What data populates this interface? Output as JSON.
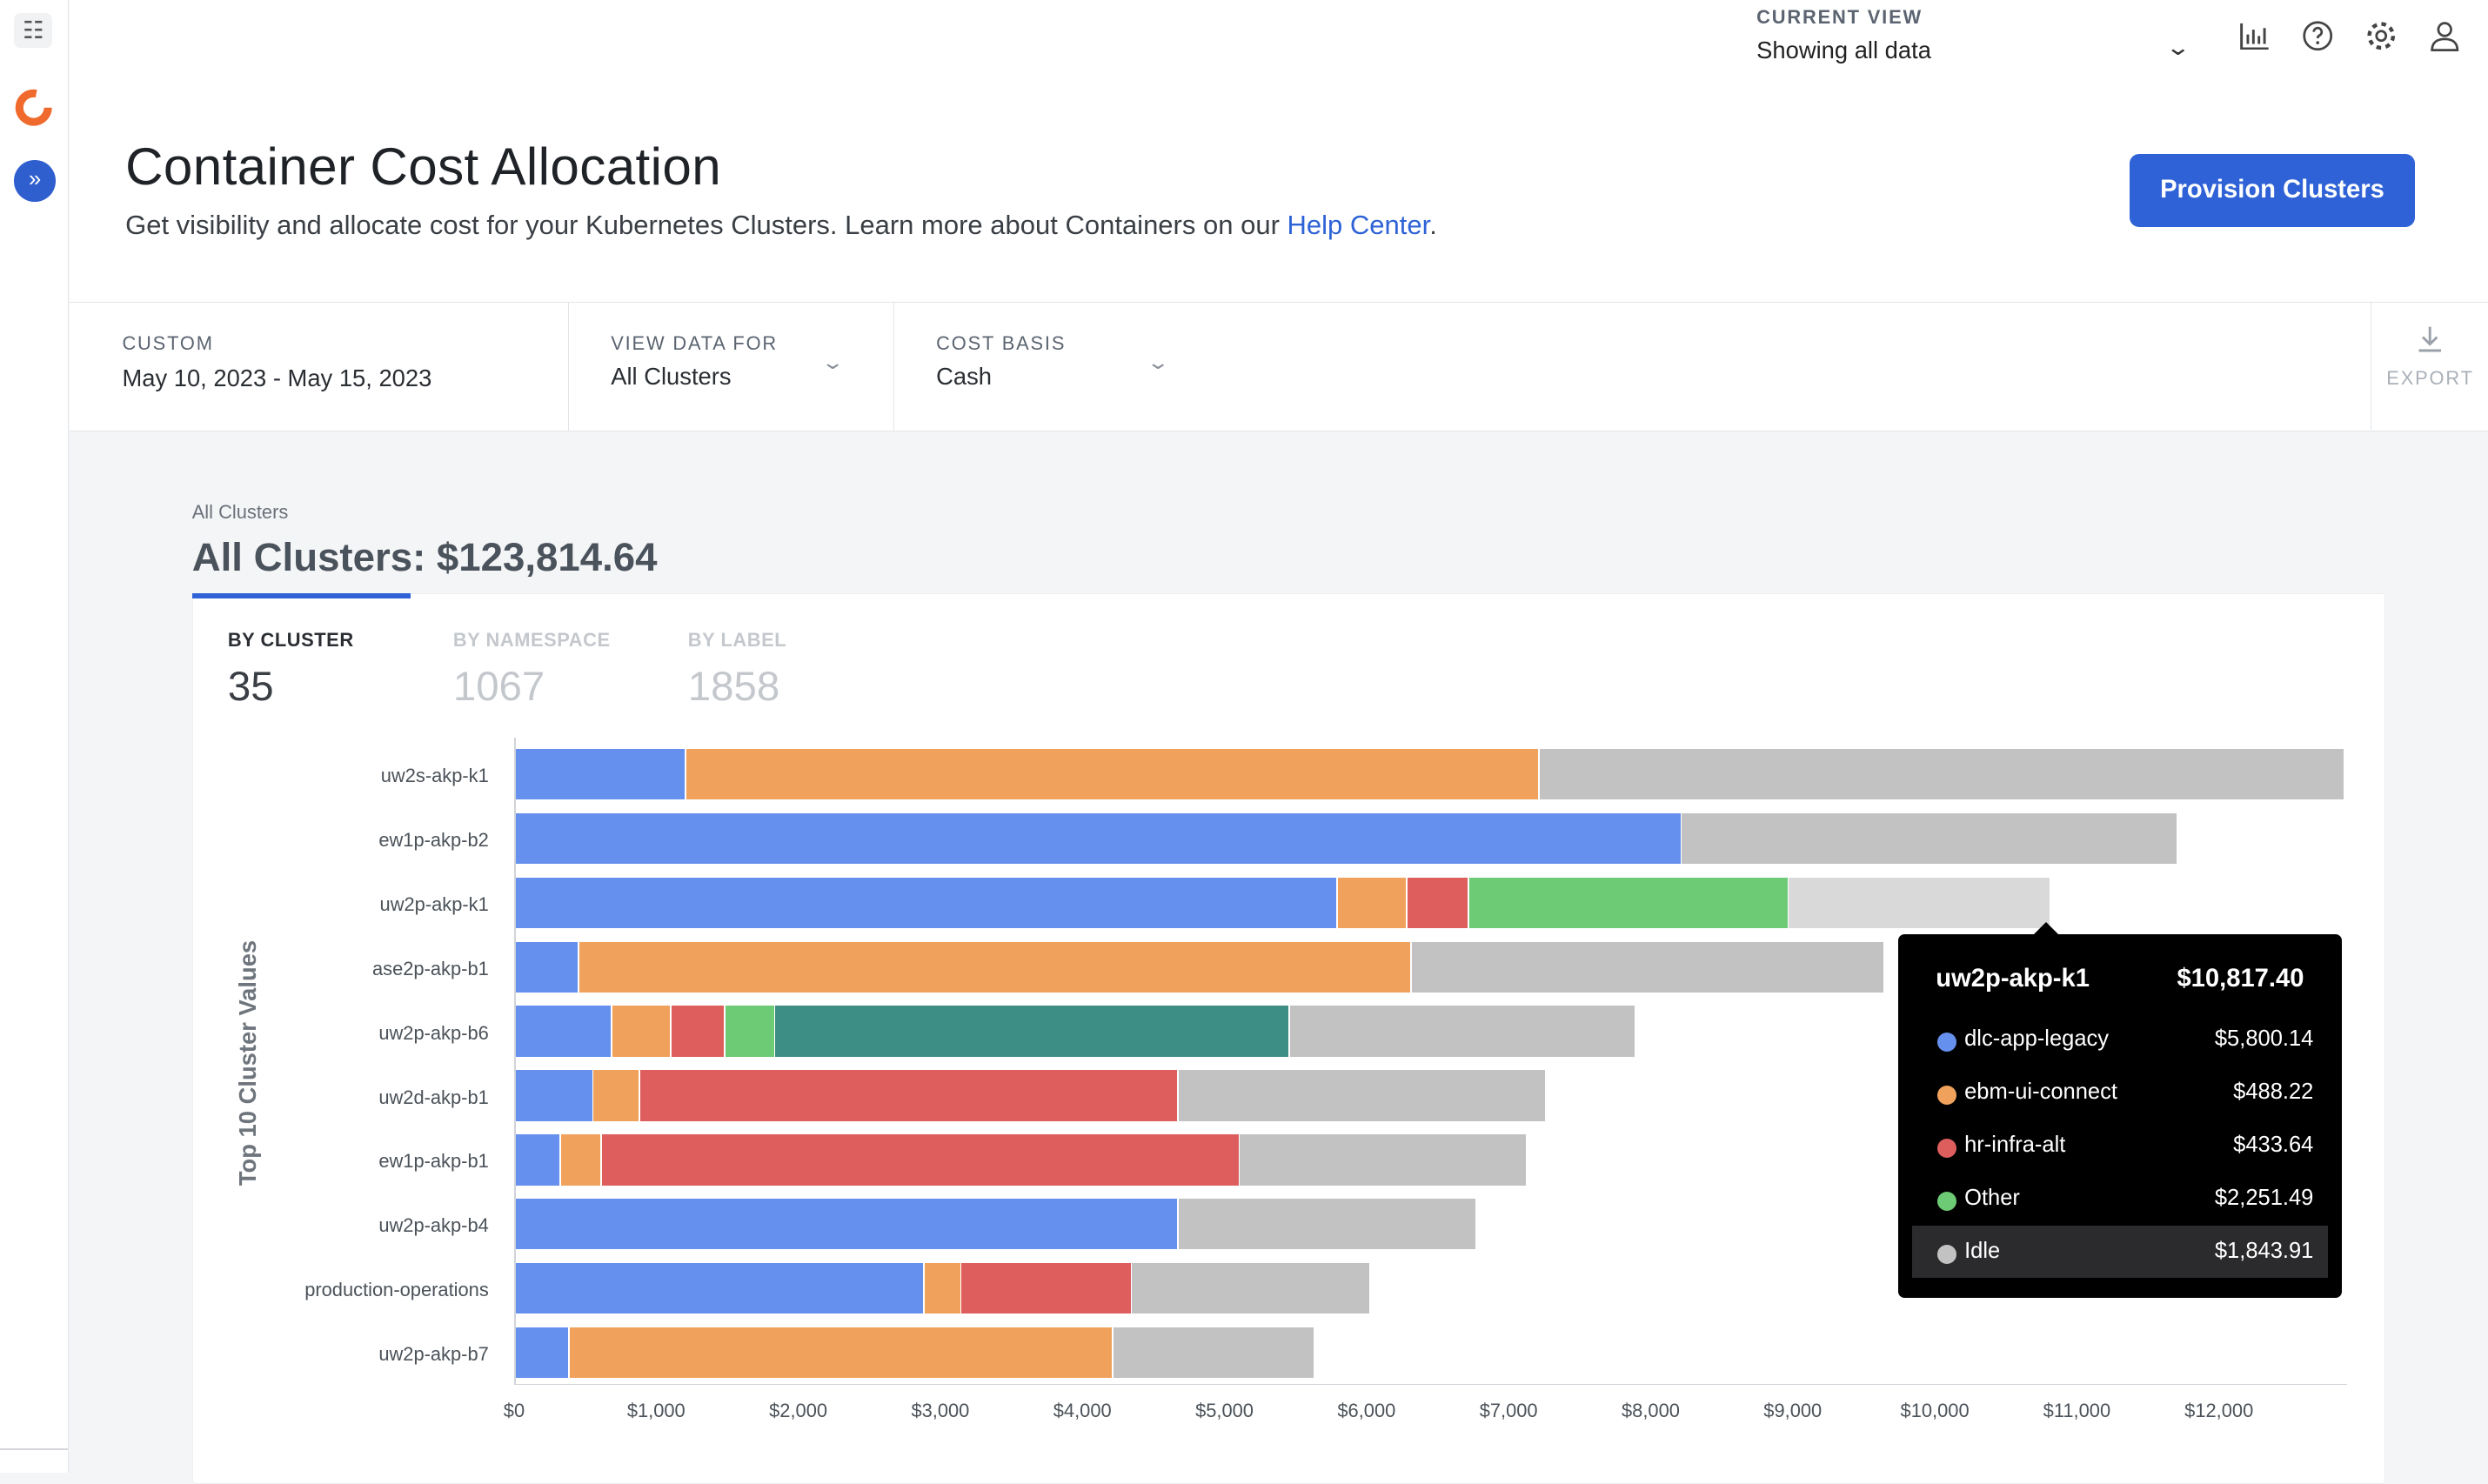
{
  "header": {
    "current_view_label": "CURRENT VIEW",
    "current_view_value": "Showing all data",
    "icons": [
      "bar-chart-icon",
      "help-icon",
      "settings-icon",
      "user-icon"
    ]
  },
  "page": {
    "title": "Container Cost Allocation",
    "subtitle": "Get visibility and allocate cost for your Kubernetes Clusters. Learn more about Containers on our ",
    "subtitle_link": "Help Center",
    "subtitle_end": ".",
    "provision_button": "Provision Clusters"
  },
  "filters": {
    "date_label": "CUSTOM",
    "date_value": "May 10, 2023 - May 15, 2023",
    "view_label": "VIEW DATA FOR",
    "view_value": "All Clusters",
    "basis_label": "COST BASIS",
    "basis_value": "Cash",
    "export_label": "EXPORT"
  },
  "summary": {
    "breadcrumb": "All Clusters",
    "total": "All Clusters: $123,814.64"
  },
  "tabs": [
    {
      "label": "BY CLUSTER",
      "count": "35"
    },
    {
      "label": "BY NAMESPACE",
      "count": "1067"
    },
    {
      "label": "BY LABEL",
      "count": "1858"
    }
  ],
  "colors": {
    "blue": "#6690ee",
    "orange": "#f0a25d",
    "red": "#de5e5e",
    "green": "#6ccb74",
    "teal": "#3d8f86",
    "idle": "#c2c2c2",
    "idle_highlight": "#d9d9d9"
  },
  "chart_data": {
    "type": "bar",
    "orientation": "horizontal",
    "stacked": true,
    "ylabel": "Top 10 Cluster Values",
    "xlabel": "",
    "xlim": [
      0,
      12900
    ],
    "x_ticks": [
      "$0",
      "$1,000",
      "$2,000",
      "$3,000",
      "$4,000",
      "$5,000",
      "$6,000",
      "$7,000",
      "$8,000",
      "$9,000",
      "$10,000",
      "$11,000",
      "$12,000"
    ],
    "categories": [
      "uw2s-akp-k1",
      "ew1p-akp-b2",
      "uw2p-akp-k1",
      "ase2p-akp-b1",
      "uw2p-akp-b6",
      "uw2d-akp-b1",
      "ew1p-akp-b1",
      "uw2p-akp-b4",
      "production-operations",
      "uw2p-akp-b7"
    ],
    "bars": [
      [
        [
          "blue",
          1210
        ],
        [
          "orange",
          6010
        ],
        [
          "idle",
          5670
        ]
      ],
      [
        [
          "blue",
          8220
        ],
        [
          "idle",
          3490
        ]
      ],
      [
        [
          "blue",
          5800.14
        ],
        [
          "orange",
          488.22
        ],
        [
          "red",
          433.64
        ],
        [
          "green",
          2251.49
        ],
        [
          "idle_highlight",
          1843.91
        ]
      ],
      [
        [
          "blue",
          460
        ],
        [
          "orange",
          5860
        ],
        [
          "idle",
          3330
        ]
      ],
      [
        [
          "blue",
          690
        ],
        [
          "orange",
          420
        ],
        [
          "red",
          380
        ],
        [
          "green",
          350
        ],
        [
          "teal",
          3620
        ],
        [
          "idle",
          2440
        ]
      ],
      [
        [
          "blue",
          560
        ],
        [
          "orange",
          330
        ],
        [
          "red",
          3790
        ],
        [
          "idle",
          2590
        ]
      ],
      [
        [
          "blue",
          330
        ],
        [
          "orange",
          290
        ],
        [
          "red",
          4490
        ],
        [
          "idle",
          2020
        ]
      ],
      [
        [
          "blue",
          4680
        ],
        [
          "idle",
          2100
        ]
      ],
      [
        [
          "blue",
          2890
        ],
        [
          "orange",
          260
        ],
        [
          "red",
          1200
        ],
        [
          "idle",
          1680
        ]
      ],
      [
        [
          "blue",
          390
        ],
        [
          "orange",
          3830
        ],
        [
          "idle",
          1420
        ]
      ]
    ]
  },
  "tooltip": {
    "cluster": "uw2p-akp-k1",
    "total": "$10,817.40",
    "rows": [
      {
        "name": "dlc-app-legacy",
        "value": "$5,800.14",
        "color": "#6690ee"
      },
      {
        "name": "ebm-ui-connect",
        "value": "$488.22",
        "color": "#f0a25d"
      },
      {
        "name": "hr-infra-alt",
        "value": "$433.64",
        "color": "#de5e5e"
      },
      {
        "name": "Other",
        "value": "$2,251.49",
        "color": "#6ccb74"
      },
      {
        "name": "Idle",
        "value": "$1,843.91",
        "color": "#c2c2c2"
      }
    ]
  }
}
